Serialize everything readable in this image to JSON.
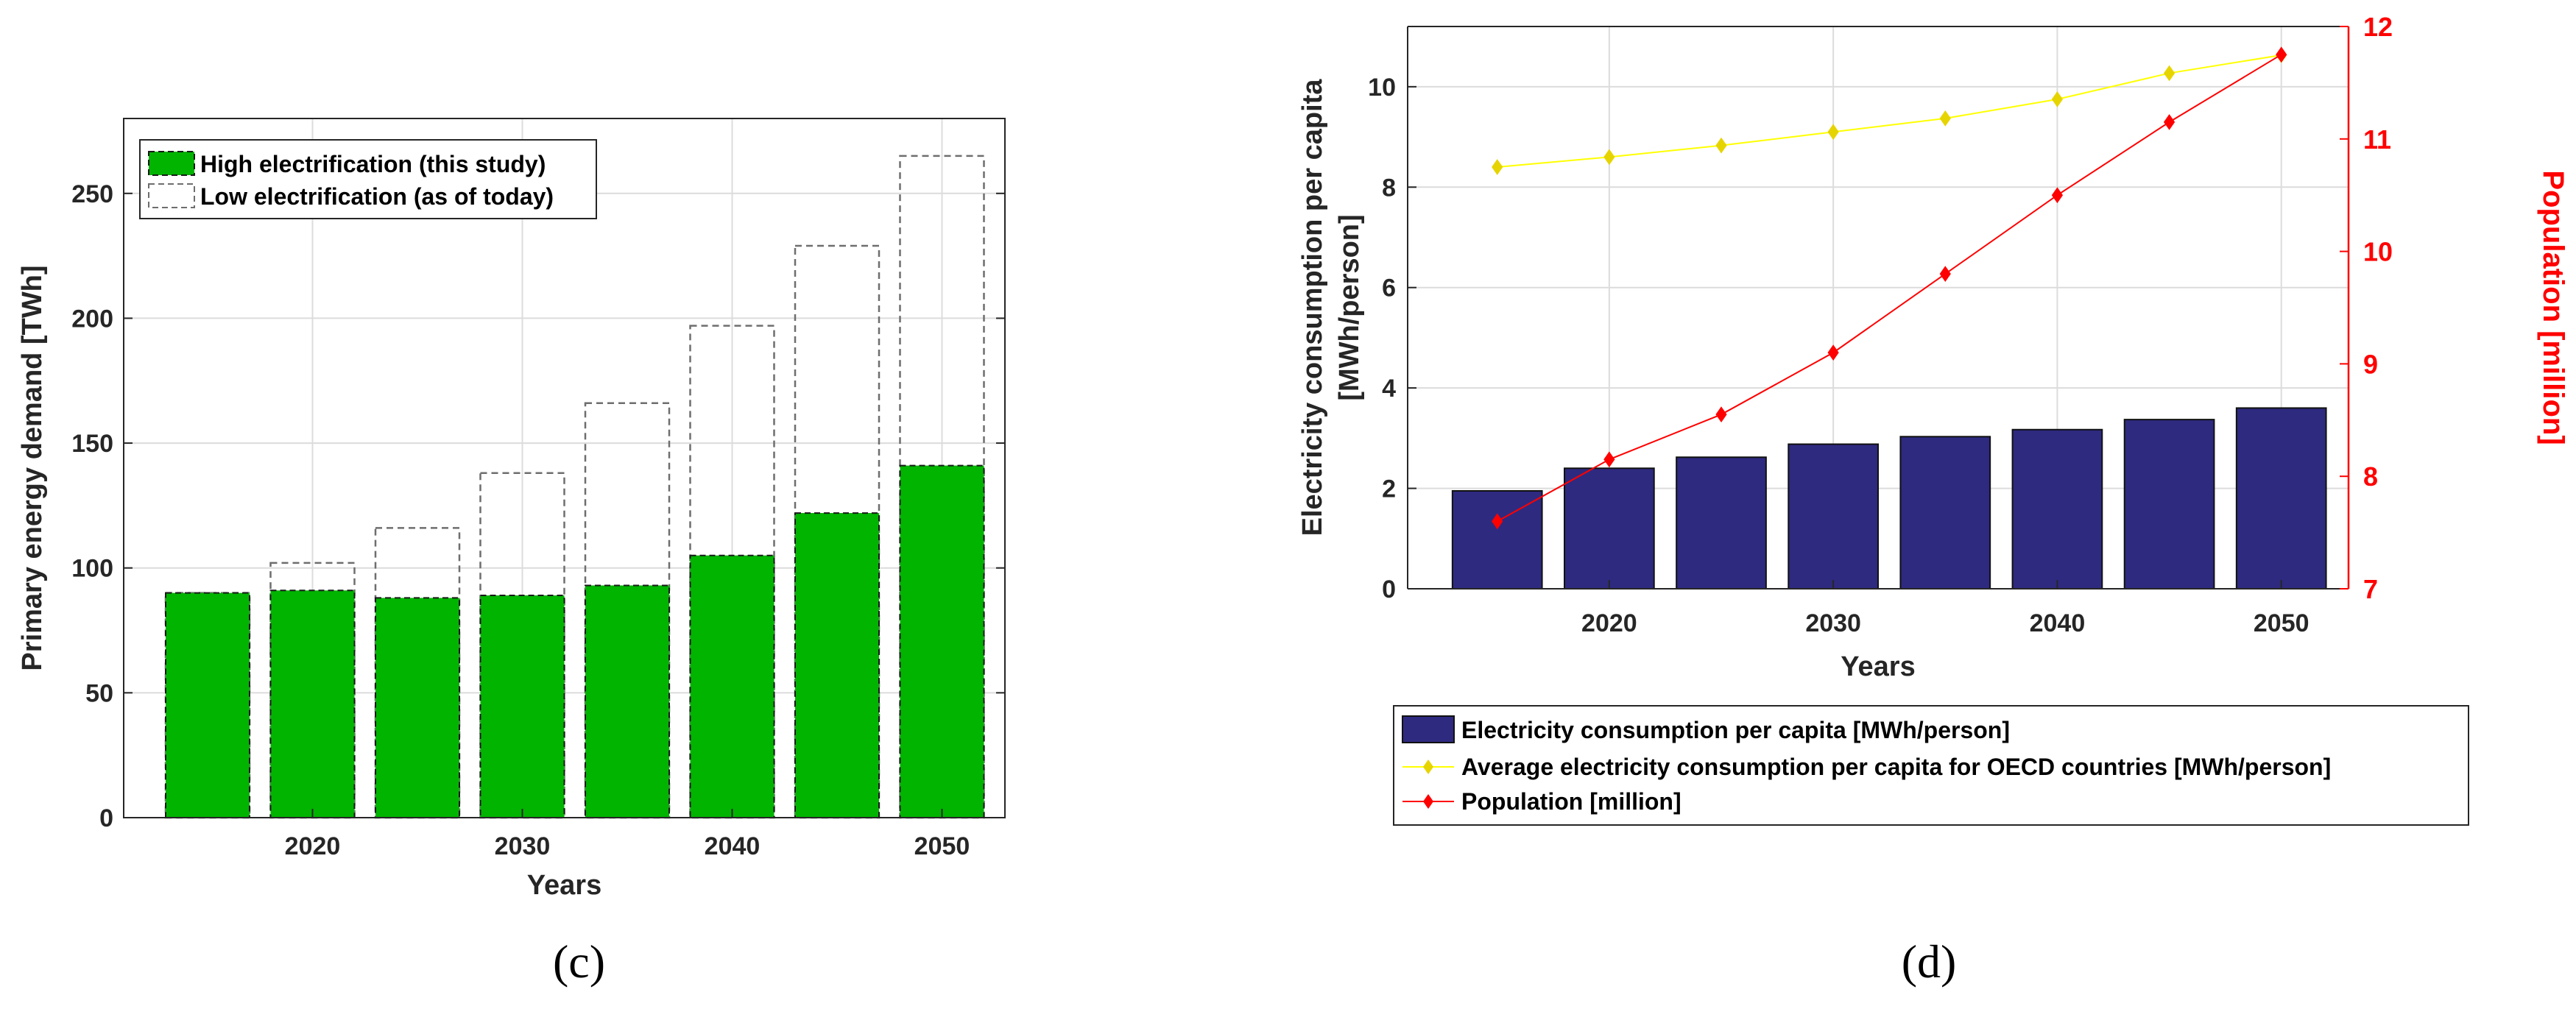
{
  "colors": {
    "high_bar": "#00b400",
    "low_bar_outline": "#6e6e6e",
    "per_capita_bar": "#2e2a80",
    "oecd_line": "#ffff00",
    "oecd_marker": "#e6d400",
    "population_line": "#ff0000",
    "right_axis": "#ff0000"
  },
  "chart_data": [
    {
      "type": "bar",
      "panel_label": "(c)",
      "xlabel": "Years",
      "ylabel": "Primary energy demand [TWh]",
      "categories": [
        2015,
        2020,
        2025,
        2030,
        2035,
        2040,
        2045,
        2050
      ],
      "xticks": [
        2020,
        2030,
        2040,
        2050
      ],
      "xlim": [
        2011,
        2053
      ],
      "ylim": [
        0,
        280
      ],
      "yticks": [
        0,
        50,
        100,
        150,
        200,
        250
      ],
      "grid": true,
      "legend_position": "top-left",
      "series": [
        {
          "name": "High electrification (this study)",
          "style": "filled",
          "values": [
            90,
            91,
            88,
            89,
            93,
            105,
            122,
            141
          ]
        },
        {
          "name": "Low electrification (as of today)",
          "style": "dashed-outline",
          "values": [
            90,
            102,
            116,
            138,
            166,
            197,
            229,
            265
          ]
        }
      ]
    },
    {
      "type": "bar+line",
      "panel_label": "(d)",
      "xlabel": "Years",
      "ylabel": "Electricity consumption per capita\n[MWh/person]",
      "ylabel_lines": [
        "Electricity consumption per capita",
        "[MWh/person]"
      ],
      "y2label": "Population [million]",
      "categories": [
        2015,
        2020,
        2025,
        2030,
        2035,
        2040,
        2045,
        2050
      ],
      "xticks": [
        2020,
        2030,
        2040,
        2050
      ],
      "xlim": [
        2011,
        2053
      ],
      "ylim": [
        0,
        11.2
      ],
      "yticks": [
        0,
        2,
        4,
        6,
        8,
        10
      ],
      "y2lim": [
        7,
        12
      ],
      "y2ticks": [
        7,
        8,
        9,
        10,
        11,
        12
      ],
      "grid": true,
      "legend_position": "below",
      "series": [
        {
          "name": "Electricity consumption per capita  [MWh/person]",
          "type": "bar",
          "axis": "left",
          "values": [
            1.95,
            2.4,
            2.62,
            2.88,
            3.03,
            3.17,
            3.37,
            3.6
          ]
        },
        {
          "name": "Average electricity consumption per capita for OECD countries [MWh/person]",
          "type": "line",
          "axis": "left",
          "values": [
            8.4,
            8.6,
            8.83,
            9.1,
            9.37,
            9.75,
            10.27,
            10.63
          ]
        },
        {
          "name": "Population [million]",
          "type": "line",
          "axis": "right",
          "values": [
            7.6,
            8.15,
            8.55,
            9.1,
            9.8,
            10.5,
            11.15,
            11.75
          ]
        }
      ]
    }
  ]
}
